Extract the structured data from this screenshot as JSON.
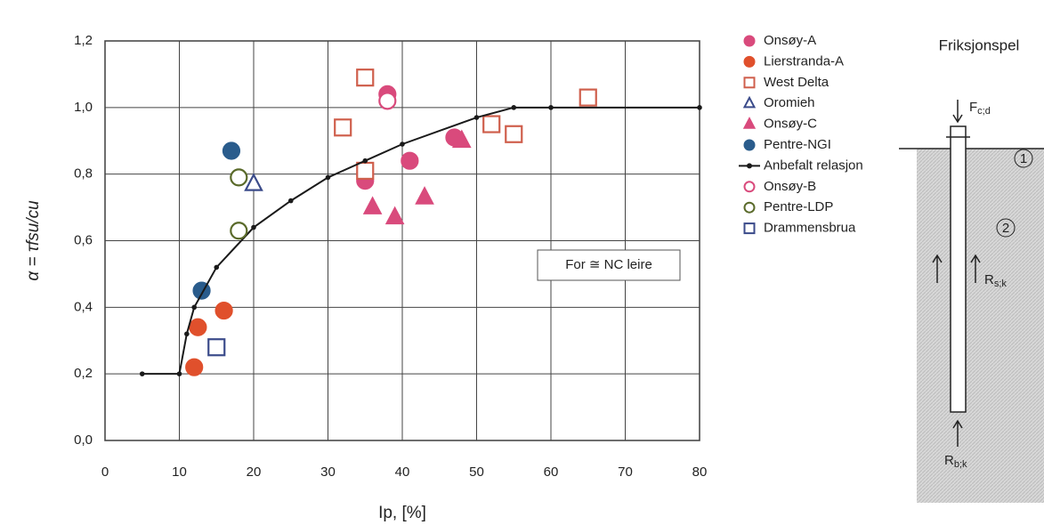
{
  "chart_data": {
    "type": "scatter",
    "xlabel": "Ip, [%]",
    "ylabel": "α = τfsu/cu",
    "xlim": [
      0,
      80
    ],
    "xticks": [
      0,
      10,
      20,
      30,
      40,
      50,
      60,
      70,
      80
    ],
    "ylim": [
      0,
      1.2
    ],
    "yticks": [
      {
        "value": 0,
        "label": "0,0"
      },
      {
        "value": 0.2,
        "label": "0,2"
      },
      {
        "value": 0.4,
        "label": "0,4"
      },
      {
        "value": 0.6,
        "label": "0,6"
      },
      {
        "value": 0.8,
        "label": "0,8"
      },
      {
        "value": 1.0,
        "label": "1,0"
      },
      {
        "value": 1.2,
        "label": "1,2"
      }
    ],
    "grid": true,
    "legend": "right",
    "annotation": "For ≅ NC leire",
    "series": [
      {
        "name": "Onsøy-A",
        "color": "#d94a7c",
        "marker": "circle",
        "filled": true,
        "x": [
          35,
          35,
          38,
          41,
          47
        ],
        "values": [
          0.8,
          0.78,
          1.04,
          0.84,
          0.91
        ]
      },
      {
        "name": "Lierstranda-A",
        "color": "#e0502c",
        "marker": "circle",
        "filled": true,
        "x": [
          12,
          12.5,
          16
        ],
        "values": [
          0.22,
          0.34,
          0.39
        ]
      },
      {
        "name": "West Delta",
        "color": "#cf5f4c",
        "marker": "square",
        "filled": false,
        "x": [
          35,
          32,
          35,
          52,
          55,
          65
        ],
        "values": [
          1.09,
          0.94,
          0.81,
          0.95,
          0.92,
          1.03
        ]
      },
      {
        "name": "Oromieh",
        "color": "#3b4b8a",
        "marker": "triangle",
        "filled": false,
        "x": [
          20
        ],
        "values": [
          0.77
        ]
      },
      {
        "name": "Onsøy-C",
        "color": "#d94a7c",
        "marker": "triangle",
        "filled": true,
        "x": [
          36,
          39,
          43,
          48
        ],
        "values": [
          0.7,
          0.67,
          0.73,
          0.9
        ]
      },
      {
        "name": "Pentre-NGI",
        "color": "#2a5c8c",
        "marker": "circle",
        "filled": true,
        "x": [
          17,
          13
        ],
        "values": [
          0.87,
          0.45
        ]
      },
      {
        "name": "Anbefalt relasjon",
        "color": "#1a1a1a",
        "marker": "line",
        "filled": true,
        "x": [
          5,
          10,
          11,
          12,
          15,
          20,
          25,
          30,
          35,
          40,
          50,
          55,
          60,
          80
        ],
        "values": [
          0.2,
          0.2,
          0.32,
          0.4,
          0.52,
          0.64,
          0.72,
          0.79,
          0.84,
          0.89,
          0.97,
          1.0,
          1.0,
          1.0
        ]
      },
      {
        "name": "Onsøy-B",
        "color": "#d94a7c",
        "marker": "circle",
        "filled": false,
        "x": [
          38
        ],
        "values": [
          1.02
        ]
      },
      {
        "name": "Pentre-LDP",
        "color": "#5a6a2a",
        "marker": "circle",
        "filled": false,
        "x": [
          18,
          18
        ],
        "values": [
          0.79,
          0.63
        ]
      },
      {
        "name": "Drammensbrua",
        "color": "#3b4b8a",
        "marker": "square",
        "filled": false,
        "x": [
          15
        ],
        "values": [
          0.28
        ]
      }
    ]
  },
  "diagram": {
    "title": "Friksjonspel",
    "force_top": {
      "main": "F",
      "sub": "c;d"
    },
    "zone_1": "1",
    "zone_2": "2",
    "shaft": {
      "main": "R",
      "sub": "s;k"
    },
    "base": {
      "main": "R",
      "sub": "b;k"
    }
  }
}
